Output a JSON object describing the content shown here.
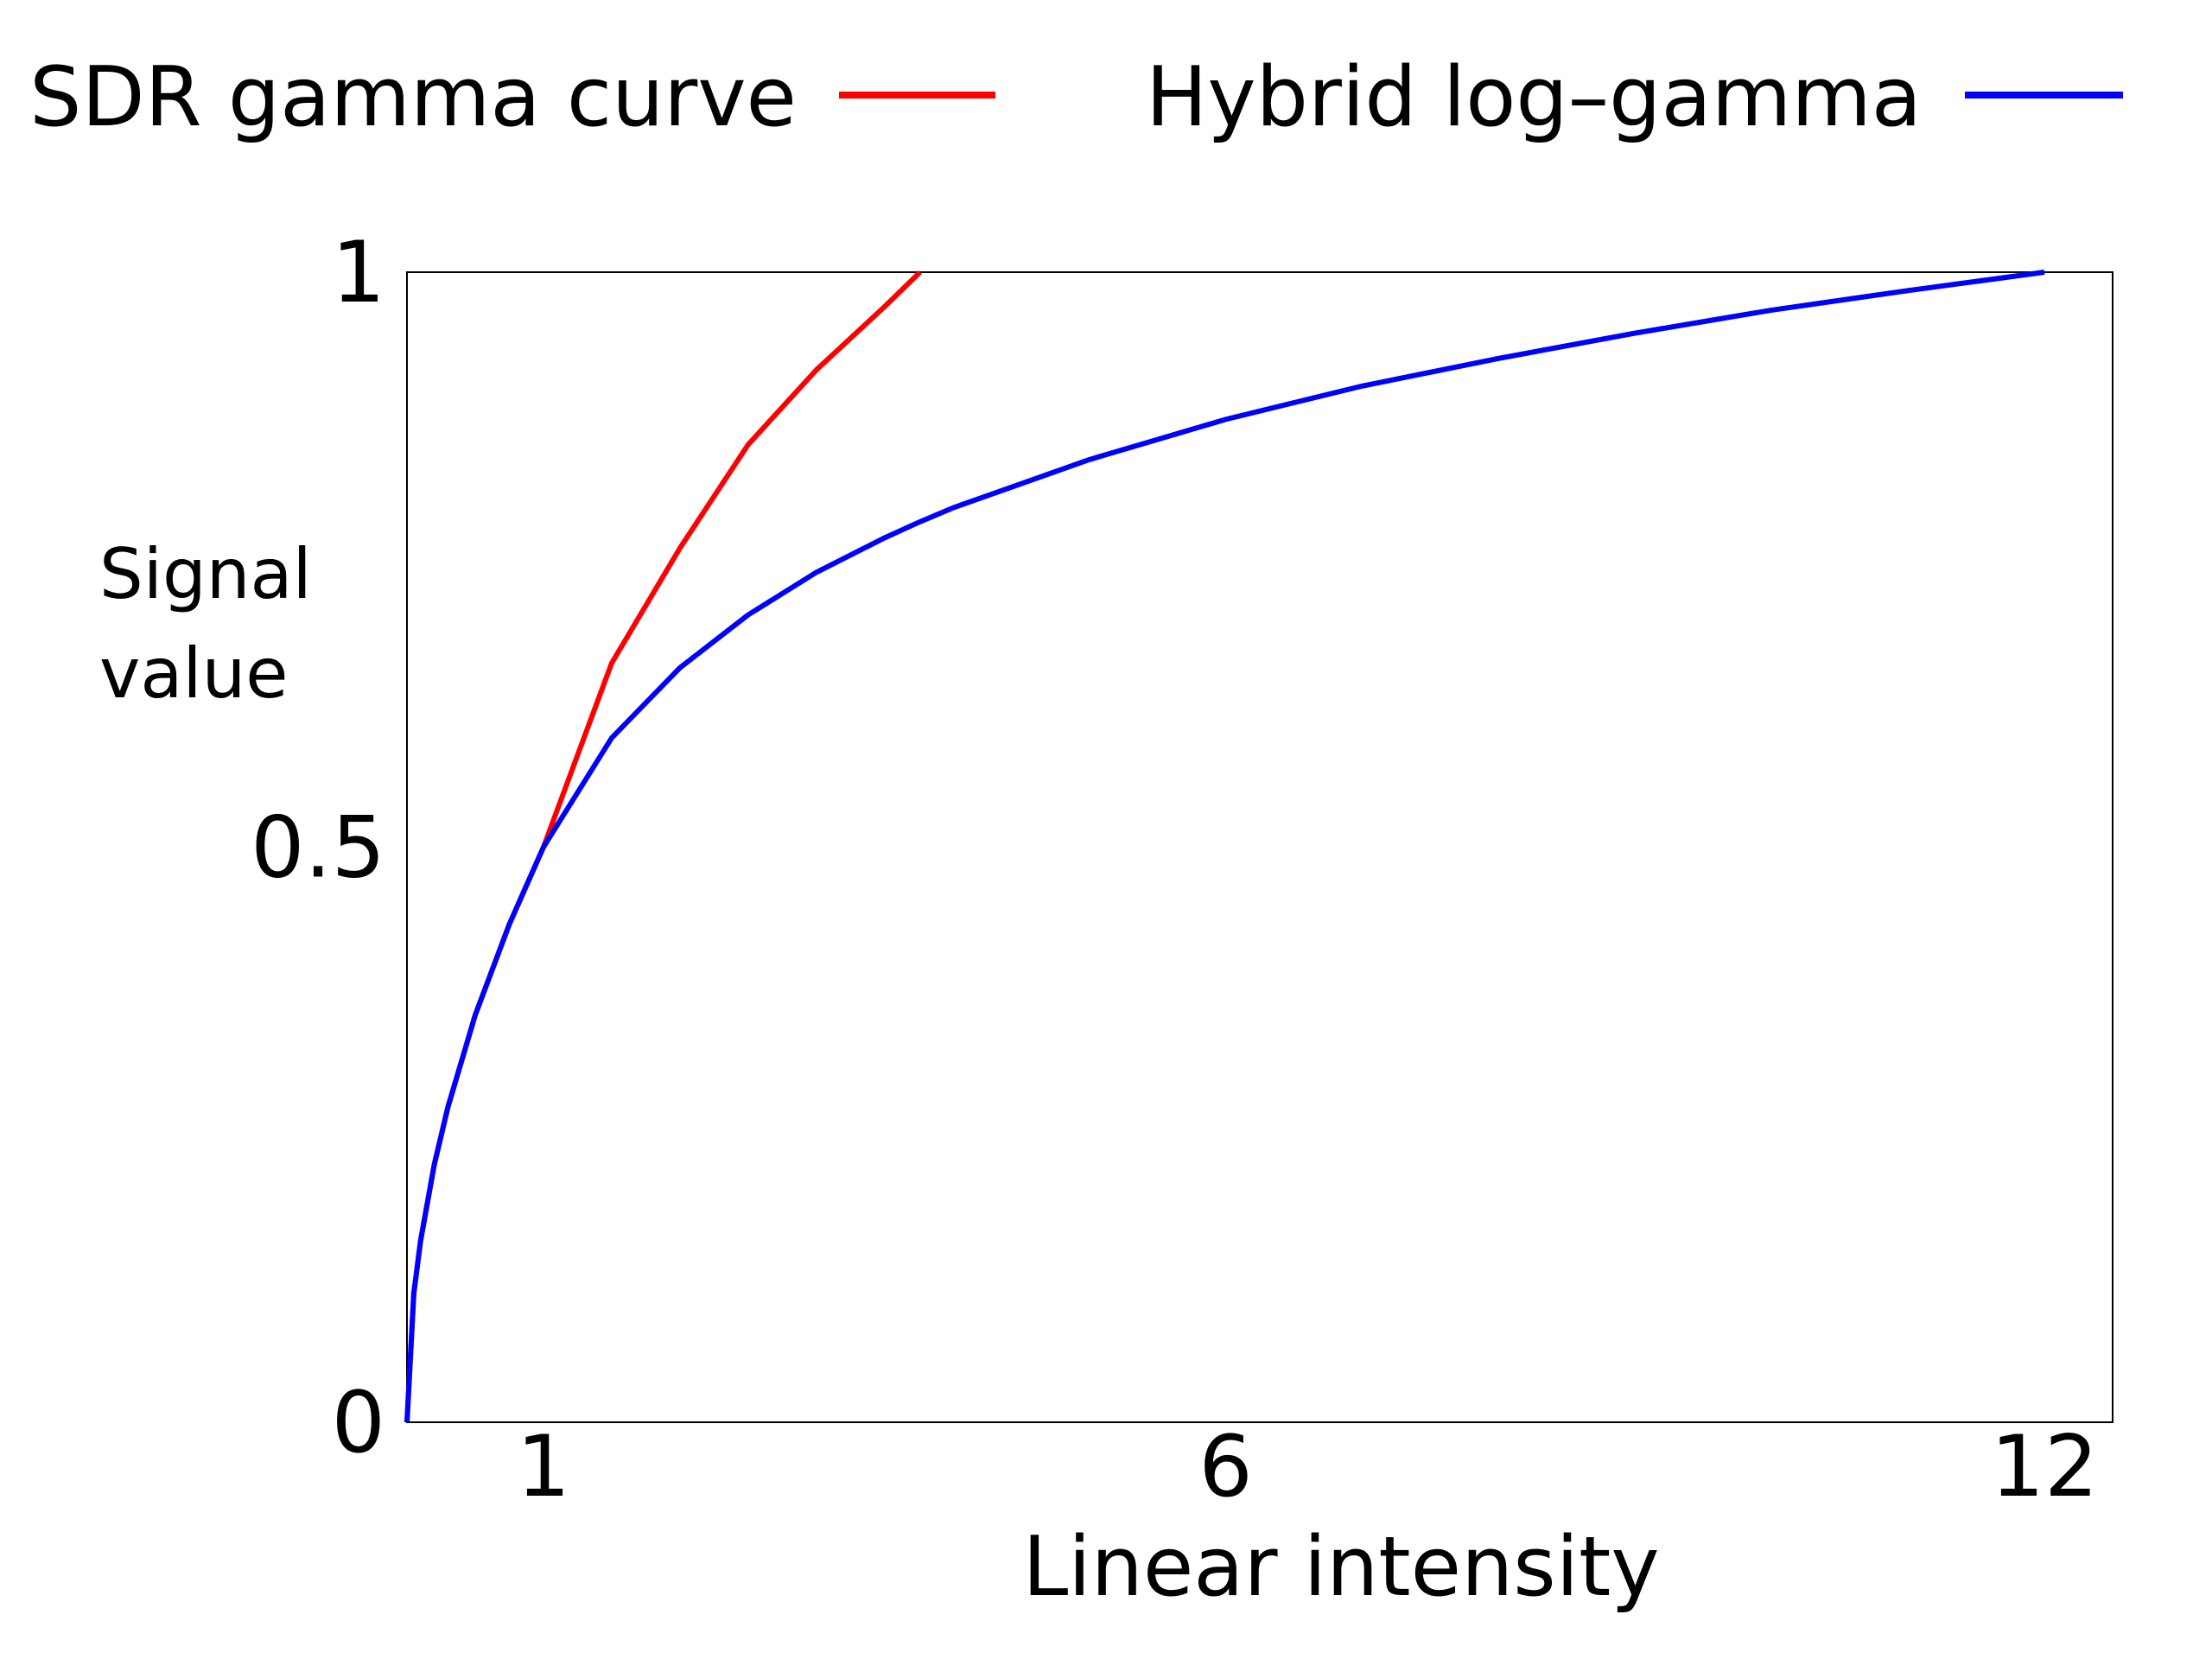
{
  "chart_data": {
    "type": "line",
    "xlabel": "Linear intensity",
    "ylabel": [
      "Signal",
      "value"
    ],
    "x": [
      0,
      0.05,
      0.1,
      0.2,
      0.3,
      0.5,
      0.75,
      1,
      1.5,
      2,
      2.5,
      3,
      3.5,
      3.76,
      4,
      5,
      6,
      7,
      8,
      9,
      10,
      11,
      12
    ],
    "series": [
      {
        "name": "SDR gamma curve",
        "color": "#ff0000",
        "values": [
          0,
          0.112,
          0.158,
          0.224,
          0.274,
          0.354,
          0.433,
          0.5,
          0.66,
          0.76,
          0.85,
          0.915,
          0.97,
          1.0,
          null,
          null,
          null,
          null,
          null,
          null,
          null,
          null,
          null
        ]
      },
      {
        "name": "Hybrid log–gamma",
        "color": "#0000ff",
        "values": [
          0,
          0.112,
          0.158,
          0.224,
          0.274,
          0.354,
          0.433,
          0.5,
          0.595,
          0.656,
          0.702,
          0.739,
          0.769,
          0.783,
          0.795,
          0.837,
          0.872,
          0.901,
          0.925,
          0.947,
          0.967,
          0.984,
          1.0
        ]
      }
    ],
    "xlim": [
      0,
      12.5
    ],
    "ylim": [
      0,
      1
    ],
    "xticks": [
      1,
      6,
      12
    ],
    "yticks": [
      0,
      0.5,
      1
    ],
    "grid": false,
    "legend": "top"
  }
}
